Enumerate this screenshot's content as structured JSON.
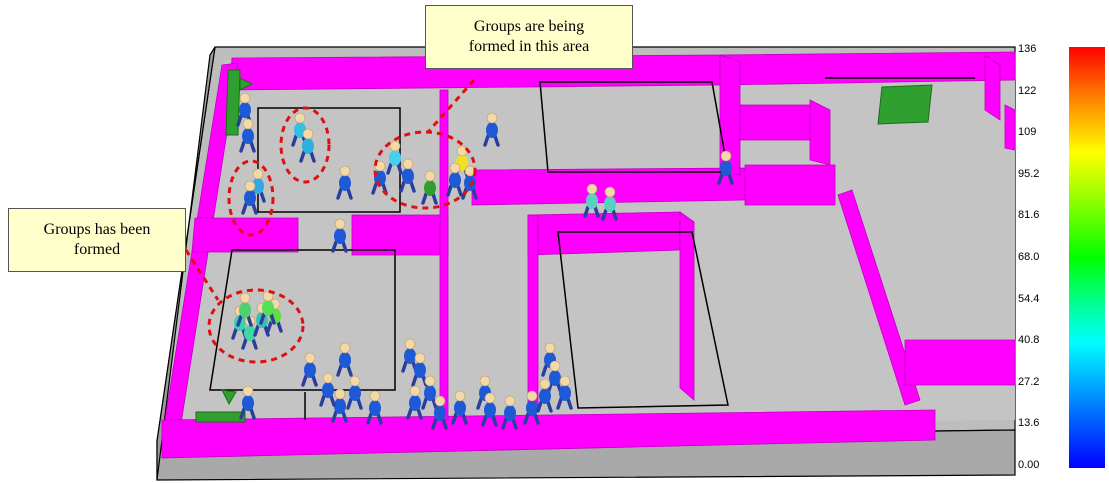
{
  "callouts": {
    "top_line1": "Groups are being",
    "top_line2": "formed in this area",
    "left_line1": "Groups has been",
    "left_line2": "formed"
  },
  "colorbar": {
    "ticks": [
      "136",
      "122",
      "109",
      "95.2",
      "81.6",
      "68.0",
      "54.4",
      "40.8",
      "27.2",
      "13.6",
      "0.00"
    ],
    "colors": {
      "high": "#ff0000",
      "mid": "#00ff00",
      "low": "#0000ff"
    }
  },
  "colors": {
    "wall": "#ff00ff",
    "floor": "#c0c0c0",
    "exit": "#2fa02f",
    "group_marker": "#e01010"
  }
}
